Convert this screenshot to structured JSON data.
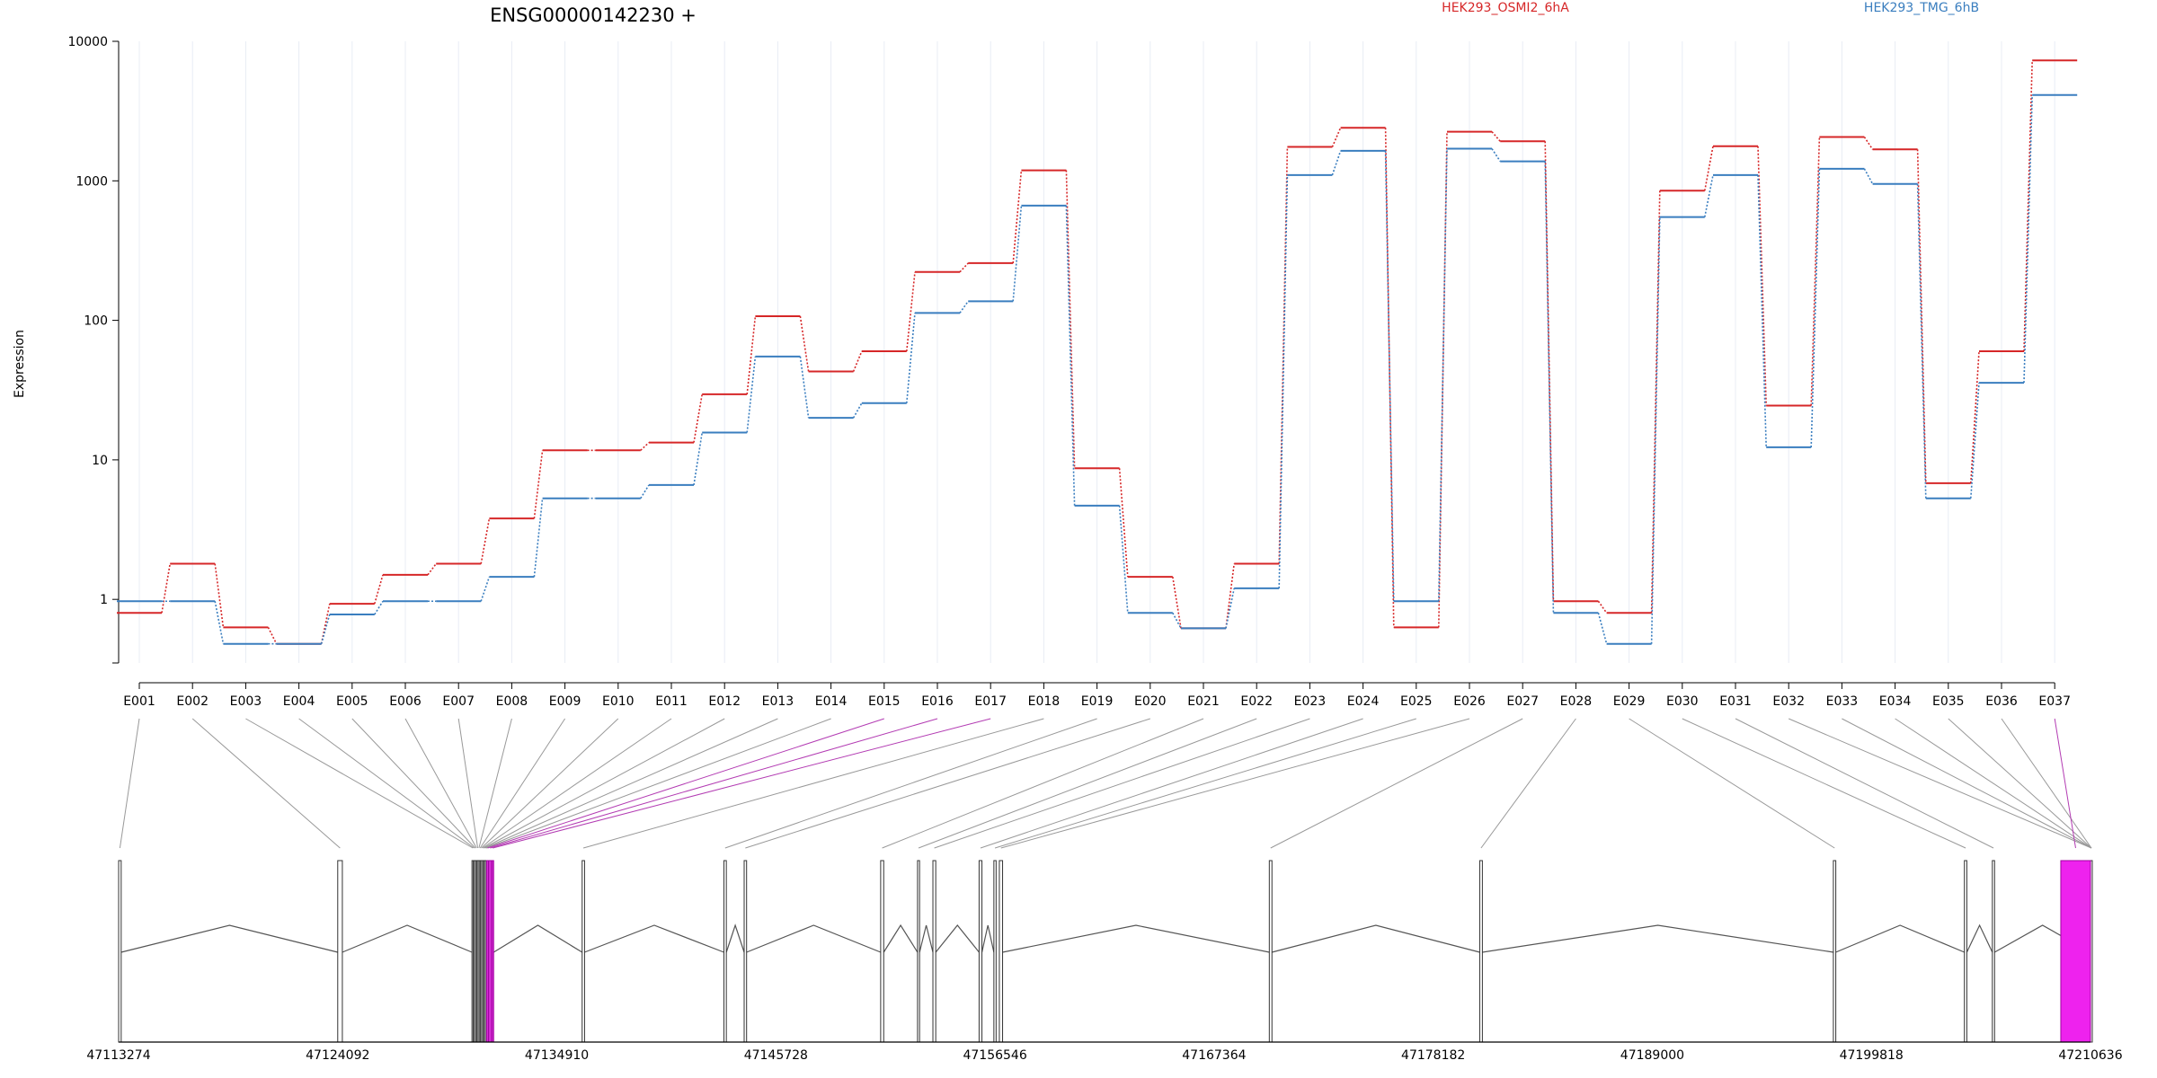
{
  "chart_data": {
    "type": "line",
    "title": "ENSG00000142230 +",
    "ylabel": "Expression",
    "yscale": "log",
    "ylim": [
      0.35,
      10000
    ],
    "y_ticks": [
      {
        "value": 1,
        "label": "1"
      },
      {
        "value": 10,
        "label": "10"
      },
      {
        "value": 100,
        "label": "100"
      },
      {
        "value": 1000,
        "label": "1000"
      },
      {
        "value": 10000,
        "label": "10000"
      }
    ],
    "categories": [
      "E001",
      "E002",
      "E003",
      "E004",
      "E005",
      "E006",
      "E007",
      "E008",
      "E009",
      "E010",
      "E011",
      "E012",
      "E013",
      "E014",
      "E015",
      "E016",
      "E017",
      "E018",
      "E019",
      "E020",
      "E021",
      "E022",
      "E023",
      "E024",
      "E025",
      "E026",
      "E027",
      "E028",
      "E029",
      "E030",
      "E031",
      "E032",
      "E033",
      "E034",
      "E035",
      "E036",
      "E037"
    ],
    "series": [
      {
        "name": "HEK293_OSMI2_6hA",
        "color": "#d62728",
        "values": [
          0.8,
          1.8,
          0.63,
          0.48,
          0.93,
          1.5,
          1.8,
          3.8,
          11.7,
          11.7,
          13.3,
          29.5,
          107,
          43,
          60,
          222,
          257,
          1190,
          8.7,
          1.45,
          0.62,
          1.8,
          1750,
          2400,
          0.63,
          2250,
          1920,
          0.97,
          0.8,
          850,
          1770,
          24.5,
          2060,
          1680,
          6.8,
          60,
          7300
        ]
      },
      {
        "name": "HEK293_TMG_6hB",
        "color": "#3a7ebf",
        "values": [
          0.97,
          0.97,
          0.48,
          0.48,
          0.78,
          0.97,
          0.97,
          1.45,
          5.3,
          5.3,
          6.6,
          15.7,
          55,
          20,
          25.5,
          113,
          137,
          665,
          4.7,
          0.8,
          0.62,
          1.2,
          1100,
          1640,
          0.97,
          1700,
          1380,
          0.8,
          0.48,
          550,
          1100,
          12.3,
          1220,
          950,
          5.3,
          35.7,
          4120
        ]
      }
    ],
    "exon_highlights": {
      "E015": "#d62fd6",
      "E016": "#d62fd6",
      "E017": "#d62fd6",
      "E037": "#ee22ee"
    },
    "genome_axis": {
      "start": 47113274,
      "end": 47210636,
      "tick_labels": [
        "47113274",
        "47124092",
        "47134910",
        "47145728",
        "47156546",
        "47167364",
        "47178182",
        "47189000",
        "47199818",
        "47210636"
      ]
    },
    "exons": [
      {
        "id": "E001",
        "start": 47113274,
        "end": 47113400
      },
      {
        "id": "E002",
        "start": 47124092,
        "end": 47124320
      },
      {
        "id": "E003",
        "start": 47130720,
        "end": 47130780
      },
      {
        "id": "E004",
        "start": 47130780,
        "end": 47130840
      },
      {
        "id": "E005",
        "start": 47130840,
        "end": 47130900
      },
      {
        "id": "E006",
        "start": 47130900,
        "end": 47130960
      },
      {
        "id": "E007",
        "start": 47130960,
        "end": 47131020
      },
      {
        "id": "E008",
        "start": 47131020,
        "end": 47131080
      },
      {
        "id": "E009",
        "start": 47131080,
        "end": 47131140
      },
      {
        "id": "E010",
        "start": 47131140,
        "end": 47131200
      },
      {
        "id": "E011",
        "start": 47131200,
        "end": 47131260
      },
      {
        "id": "E012",
        "start": 47131260,
        "end": 47131320
      },
      {
        "id": "E013",
        "start": 47131320,
        "end": 47131380
      },
      {
        "id": "E014",
        "start": 47131380,
        "end": 47131440
      },
      {
        "id": "E015",
        "start": 47131440,
        "end": 47131540
      },
      {
        "id": "E016",
        "start": 47131540,
        "end": 47131700
      },
      {
        "id": "E017",
        "start": 47131700,
        "end": 47131790
      },
      {
        "id": "E018",
        "start": 47136160,
        "end": 47136280
      },
      {
        "id": "E019",
        "start": 47143160,
        "end": 47143280
      },
      {
        "id": "E020",
        "start": 47144160,
        "end": 47144280
      },
      {
        "id": "E021",
        "start": 47150900,
        "end": 47151050
      },
      {
        "id": "E022",
        "start": 47152720,
        "end": 47152820
      },
      {
        "id": "E023",
        "start": 47153480,
        "end": 47153620
      },
      {
        "id": "E024",
        "start": 47155760,
        "end": 47155900
      },
      {
        "id": "E025",
        "start": 47156490,
        "end": 47156600
      },
      {
        "id": "E026",
        "start": 47156760,
        "end": 47156920
      },
      {
        "id": "E027",
        "start": 47170090,
        "end": 47170220
      },
      {
        "id": "E028",
        "start": 47180480,
        "end": 47180610
      },
      {
        "id": "E029",
        "start": 47197940,
        "end": 47198060
      },
      {
        "id": "E030",
        "start": 47204410,
        "end": 47204530
      },
      {
        "id": "E031",
        "start": 47205790,
        "end": 47205900
      },
      {
        "id": "E032",
        "start": 47210636,
        "end": 47210636
      },
      {
        "id": "E033",
        "start": 47210636,
        "end": 47210636
      },
      {
        "id": "E034",
        "start": 47210636,
        "end": 47210636
      },
      {
        "id": "E035",
        "start": 47210636,
        "end": 47210636
      },
      {
        "id": "E036",
        "start": 47210636,
        "end": 47210636
      },
      {
        "id": "E037",
        "start": 47209170,
        "end": 47210636
      }
    ],
    "legend_placement": "top-right",
    "grid": true
  }
}
